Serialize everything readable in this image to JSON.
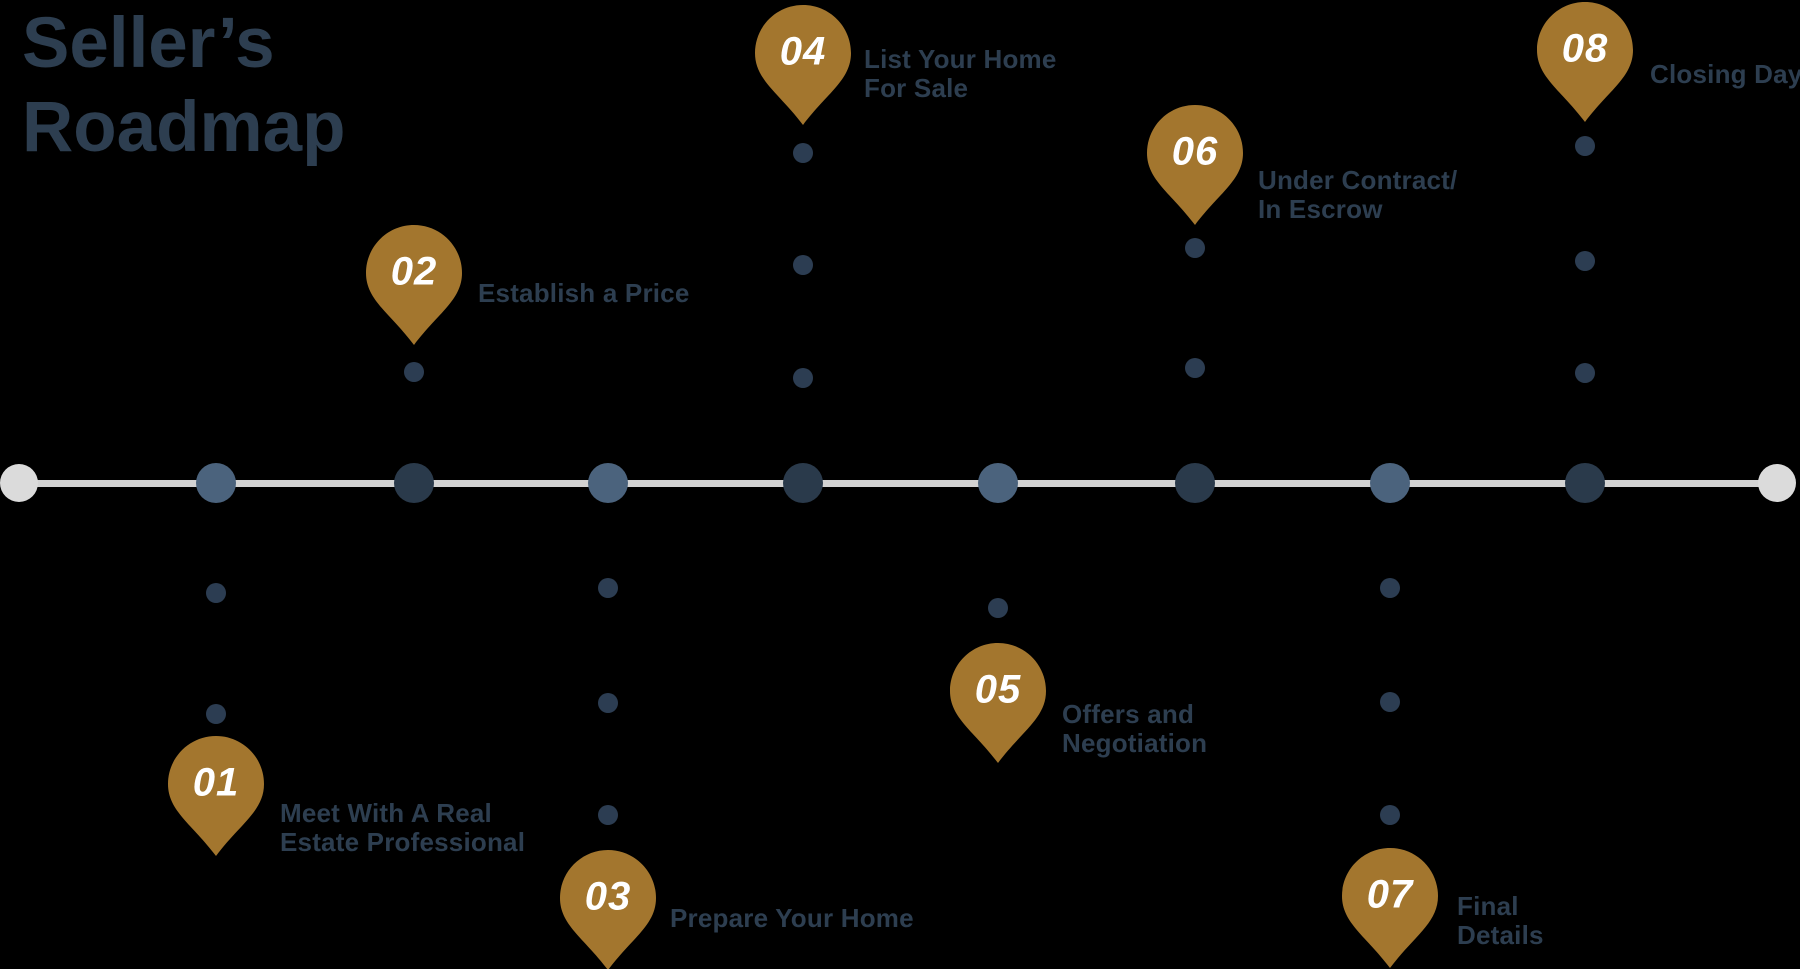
{
  "title_lines": [
    "Seller’s",
    "Roadmap"
  ],
  "steps": [
    {
      "number": "01",
      "label_lines": [
        "Meet With A Real",
        "Estate Professional"
      ],
      "side": "below"
    },
    {
      "number": "02",
      "label_lines": [
        "Establish a Price"
      ],
      "side": "above"
    },
    {
      "number": "03",
      "label_lines": [
        "Prepare Your Home"
      ],
      "side": "below"
    },
    {
      "number": "04",
      "label_lines": [
        "List Your Home",
        "For Sale"
      ],
      "side": "above"
    },
    {
      "number": "05",
      "label_lines": [
        "Offers and",
        "Negotiation"
      ],
      "side": "below"
    },
    {
      "number": "06",
      "label_lines": [
        "Under Contract/",
        "In Escrow"
      ],
      "side": "above"
    },
    {
      "number": "07",
      "label_lines": [
        "Final",
        "Details"
      ],
      "side": "below"
    },
    {
      "number": "08",
      "label_lines": [
        "Closing Day"
      ],
      "side": "above"
    }
  ],
  "colors": {
    "background": "#000000",
    "navy_text": "#2d3e50",
    "gold": "#a3762e",
    "pin_number": "#ffffff",
    "circle_steel": "#4b637d",
    "circle_dark": "#2a3a4b",
    "dot": "#2c3d52",
    "line": "#d3d3d3",
    "endpoint": "#dbdbdb"
  }
}
